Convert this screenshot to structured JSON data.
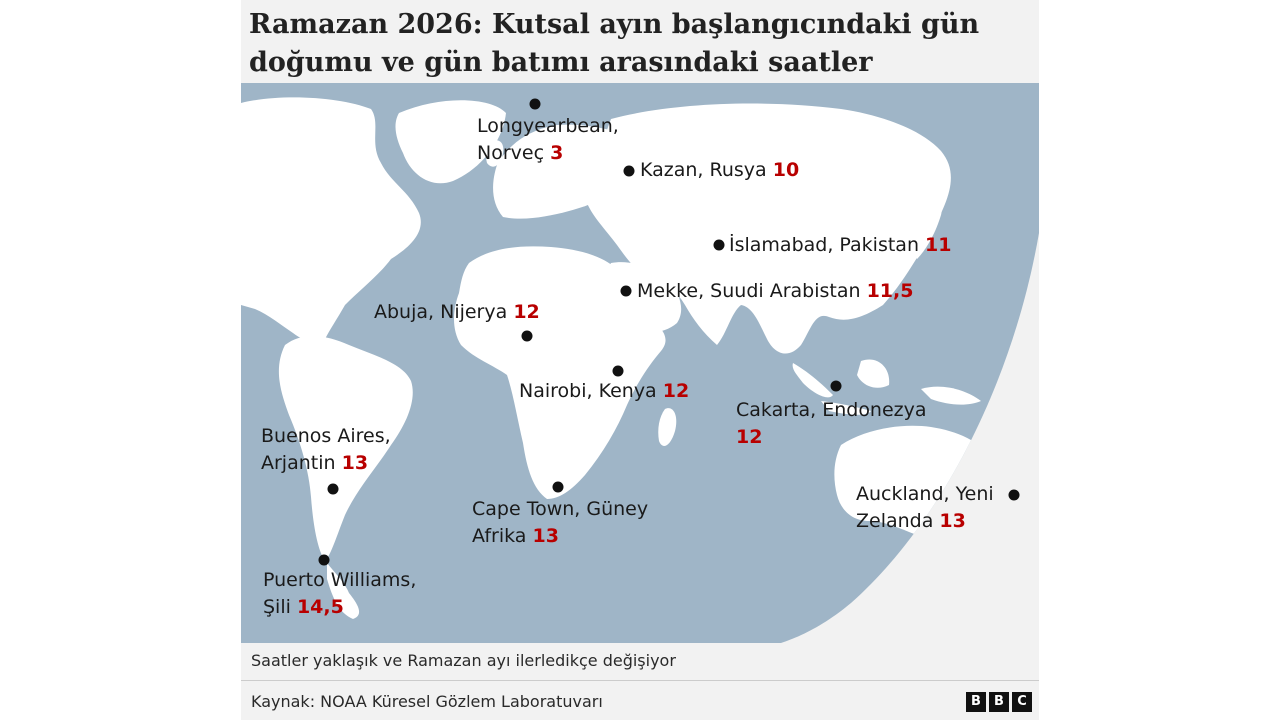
{
  "title": "Ramazan 2026: Kutsal ayın başlangıcındaki gün doğumu ve gün batımı arasındaki saatler",
  "colors": {
    "ocean": "#9fb5c7",
    "land": "#ffffff",
    "marker": "#111111",
    "highlight": "#b80000"
  },
  "places": [
    {
      "line1": "Longyearbean,",
      "line2": "Norveç",
      "hours": "3"
    },
    {
      "line1": "Kazan, Rusya",
      "hours": "10"
    },
    {
      "line1": "İslamabad, Pakistan",
      "hours": "11"
    },
    {
      "line1": "Mekke, Suudi Arabistan",
      "hours": "11,5"
    },
    {
      "line1": "Abuja, Nijerya",
      "hours": "12"
    },
    {
      "line1": "Nairobi, Kenya",
      "hours": "12"
    },
    {
      "line1": "Cakarta, Endonezya",
      "hours": "12"
    },
    {
      "line1": "Buenos Aires,",
      "line2": "Arjantin",
      "hours": "13"
    },
    {
      "line1": "Cape Town, Güney",
      "line2": "Afrika",
      "hours": "13"
    },
    {
      "line1": "Auckland, Yeni",
      "line2": "Zelanda",
      "hours": "13"
    },
    {
      "line1": "Puerto Williams,",
      "line2": "Şili",
      "hours": "14,5"
    }
  ],
  "note": "Saatler yaklaşık ve Ramazan ayı ilerledikçe değişiyor",
  "source": "Kaynak: NOAA Küresel Gözlem Laboratuvarı",
  "logo": [
    "B",
    "B",
    "C"
  ]
}
